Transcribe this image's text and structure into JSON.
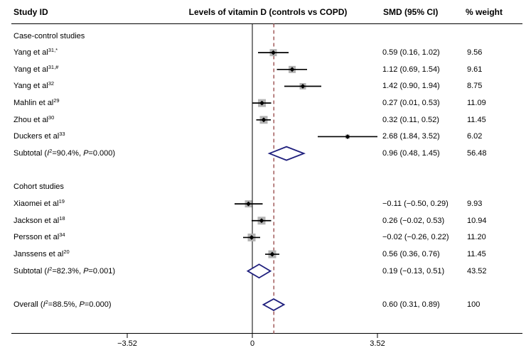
{
  "columns": {
    "study_id": "Study ID",
    "plot_title": "Levels of vitamin D (controls vs COPD)",
    "smd": "SMD (95% CI)",
    "weight": "% weight"
  },
  "colors": {
    "diamond_outline": "#1f1f7d",
    "overall_dashed_line": "#a05a5a",
    "weight_square": "#b3b3b3",
    "ci_line": "#000000",
    "axis_line": "#000000"
  },
  "chart_data": {
    "type": "forest",
    "effect_measure": "SMD",
    "x_axis": {
      "ticks": [
        {
          "value": -3.52,
          "label": "−3.52"
        },
        {
          "value": 0,
          "label": "0"
        },
        {
          "value": 3.52,
          "label": "3.52"
        }
      ],
      "null_line": 0,
      "pooled_line": 0.6,
      "range": [
        -3.52,
        3.52
      ]
    },
    "groups": [
      {
        "label": "Case-control studies",
        "studies": [
          {
            "label": "Yang et al",
            "sup": "31,*",
            "smd": 0.59,
            "lo": 0.16,
            "hi": 1.02,
            "weight": 9.56,
            "smd_text": "0.59 (0.16, 1.02)",
            "weight_text": "9.56"
          },
          {
            "label": "Yang et al",
            "sup": "31,#",
            "smd": 1.12,
            "lo": 0.69,
            "hi": 1.54,
            "weight": 9.61,
            "smd_text": "1.12 (0.69, 1.54)",
            "weight_text": "9.61"
          },
          {
            "label": "Yang et al",
            "sup": "32",
            "smd": 1.42,
            "lo": 0.9,
            "hi": 1.94,
            "weight": 8.75,
            "smd_text": "1.42 (0.90, 1.94)",
            "weight_text": "8.75"
          },
          {
            "label": "Mahlin et al",
            "sup": "29",
            "smd": 0.27,
            "lo": 0.01,
            "hi": 0.53,
            "weight": 11.09,
            "smd_text": "0.27 (0.01, 0.53)",
            "weight_text": "11.09"
          },
          {
            "label": "Zhou et al",
            "sup": "30",
            "smd": 0.32,
            "lo": 0.11,
            "hi": 0.52,
            "weight": 11.45,
            "smd_text": "0.32 (0.11, 0.52)",
            "weight_text": "11.45"
          },
          {
            "label": "Duckers et al",
            "sup": "33",
            "smd": 2.68,
            "lo": 1.84,
            "hi": 3.52,
            "weight": 6.02,
            "smd_text": "2.68 (1.84, 3.52)",
            "weight_text": "6.02"
          }
        ],
        "subtotal": {
          "prefix": "Subtotal",
          "i2": "90.4%",
          "p": "0.000",
          "smd": 0.96,
          "lo": 0.48,
          "hi": 1.45,
          "smd_text": "0.96 (0.48, 1.45)",
          "weight_text": "56.48"
        }
      },
      {
        "label": "Cohort studies",
        "studies": [
          {
            "label": "Xiaomei et al",
            "sup": "19",
            "smd": -0.11,
            "lo": -0.5,
            "hi": 0.29,
            "weight": 9.93,
            "smd_text": "−0.11 (−0.50, 0.29)",
            "weight_text": "9.93"
          },
          {
            "label": "Jackson et al",
            "sup": "18",
            "smd": 0.26,
            "lo": -0.02,
            "hi": 0.53,
            "weight": 10.94,
            "smd_text": "0.26 (−0.02, 0.53)",
            "weight_text": "10.94"
          },
          {
            "label": "Persson et al",
            "sup": "34",
            "smd": -0.02,
            "lo": -0.26,
            "hi": 0.22,
            "weight": 11.2,
            "smd_text": "−0.02 (−0.26, 0.22)",
            "weight_text": "11.20"
          },
          {
            "label": "Janssens et al",
            "sup": "20",
            "smd": 0.56,
            "lo": 0.36,
            "hi": 0.76,
            "weight": 11.45,
            "smd_text": "0.56 (0.36, 0.76)",
            "weight_text": "11.45"
          }
        ],
        "subtotal": {
          "prefix": "Subtotal",
          "i2": "82.3%",
          "p": "0.001",
          "smd": 0.19,
          "lo": -0.13,
          "hi": 0.51,
          "smd_text": "0.19 (−0.13, 0.51)",
          "weight_text": "43.52"
        }
      }
    ],
    "overall": {
      "prefix": "Overall",
      "i2": "88.5%",
      "p": "0.000",
      "smd": 0.6,
      "lo": 0.31,
      "hi": 0.89,
      "smd_text": "0.60 (0.31, 0.89)",
      "weight_text": "100"
    }
  }
}
